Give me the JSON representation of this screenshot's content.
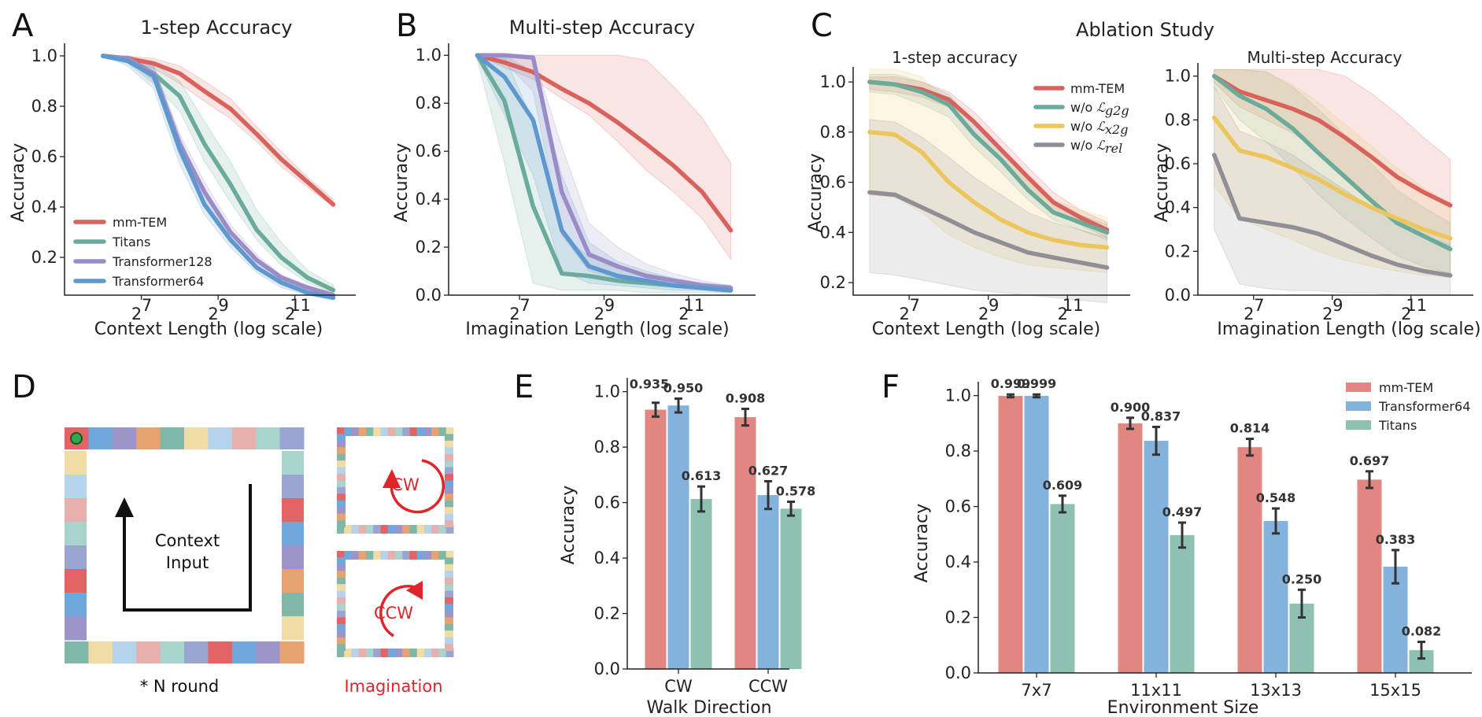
{
  "panels": {
    "A": {
      "letter": "A",
      "title": "1-step Accuracy",
      "xlabel": "Context Length (log scale)",
      "ylabel": "Accuracy"
    },
    "B": {
      "letter": "B",
      "title": "Multi-step Accuracy",
      "xlabel": "Imagination Length (log scale)",
      "ylabel": "Accuracy"
    },
    "C": {
      "letter": "C",
      "title": "Ablation Study",
      "left_title": "1-step accuracy",
      "right_title": "Multi-step Accuracy",
      "left_xlabel": "Context Length (log scale)",
      "right_xlabel": "Imagination Length (log scale)",
      "ylabel": "Accuracy"
    },
    "D": {
      "letter": "D",
      "context_line1": "Context",
      "context_line2": "Input",
      "rounds": "* N round",
      "imagination": "Imagination",
      "cw": "CW",
      "ccw": "CCW"
    },
    "E": {
      "letter": "E",
      "xlabel": "Walk Direction",
      "ylabel": "Accuracy"
    },
    "F": {
      "letter": "F",
      "xlabel": "Environment Size",
      "ylabel": "Accuracy"
    }
  },
  "colors": {
    "mm_tem": "#d9625d",
    "titans": "#6aab9c",
    "transformer128": "#9a8cc6",
    "transformer64": "#5e98cf",
    "wo_x2g": "#ecc65c",
    "wo_rel": "#8f8f95",
    "bar_red": "#e28682",
    "bar_blue": "#83b2dc",
    "bar_teal": "#8fc1b3",
    "diag_red": "#e0242b"
  },
  "chart_data": [
    {
      "id": "A",
      "type": "line",
      "title": "1-step Accuracy",
      "xlabel": "Context Length (log scale)",
      "ylabel": "Accuracy",
      "xscale": "log2",
      "xlim": [
        32,
        6144
      ],
      "ylim": [
        0.05,
        1.05
      ],
      "xticks": [
        {
          "v": 128,
          "base": "2",
          "exp": "7"
        },
        {
          "v": 512,
          "base": "2",
          "exp": "9"
        },
        {
          "v": 2048,
          "base": "2",
          "exp": "11"
        }
      ],
      "yticks": [
        0.2,
        0.4,
        0.6,
        0.8,
        1.0
      ],
      "legend": "lower-left",
      "x": [
        64,
        100,
        160,
        256,
        400,
        640,
        1024,
        1600,
        2560,
        4096
      ],
      "series": [
        {
          "name": "mm-TEM",
          "color": "#d9625d",
          "values": [
            1.0,
            0.99,
            0.97,
            0.93,
            0.86,
            0.79,
            0.69,
            0.59,
            0.5,
            0.41
          ],
          "lower": [
            1.0,
            0.98,
            0.95,
            0.89,
            0.82,
            0.75,
            0.66,
            0.56,
            0.48,
            0.4
          ],
          "upper": [
            1.0,
            1.0,
            0.99,
            0.96,
            0.9,
            0.83,
            0.72,
            0.62,
            0.52,
            0.43
          ]
        },
        {
          "name": "Titans",
          "color": "#6aab9c",
          "values": [
            1.0,
            0.99,
            0.93,
            0.84,
            0.65,
            0.49,
            0.31,
            0.2,
            0.12,
            0.07
          ],
          "lower": [
            1.0,
            0.97,
            0.89,
            0.78,
            0.58,
            0.42,
            0.27,
            0.17,
            0.1,
            0.06
          ],
          "upper": [
            1.0,
            1.0,
            0.97,
            0.9,
            0.74,
            0.58,
            0.39,
            0.26,
            0.15,
            0.09
          ]
        },
        {
          "name": "Transformer128",
          "color": "#9a8cc6",
          "values": [
            1.0,
            0.99,
            0.93,
            0.65,
            0.46,
            0.3,
            0.19,
            0.12,
            0.08,
            0.05
          ],
          "lower": [
            1.0,
            0.98,
            0.9,
            0.6,
            0.42,
            0.28,
            0.17,
            0.1,
            0.07,
            0.04
          ],
          "upper": [
            1.0,
            1.0,
            0.96,
            0.69,
            0.5,
            0.33,
            0.21,
            0.13,
            0.09,
            0.06
          ]
        },
        {
          "name": "Transformer64",
          "color": "#5e98cf",
          "values": [
            1.0,
            0.98,
            0.92,
            0.63,
            0.41,
            0.27,
            0.16,
            0.1,
            0.06,
            0.04
          ],
          "lower": [
            1.0,
            0.96,
            0.87,
            0.57,
            0.37,
            0.24,
            0.14,
            0.08,
            0.05,
            0.03
          ],
          "upper": [
            1.0,
            1.0,
            0.96,
            0.68,
            0.45,
            0.3,
            0.18,
            0.11,
            0.07,
            0.05
          ]
        }
      ]
    },
    {
      "id": "B",
      "type": "line",
      "title": "Multi-step Accuracy",
      "xlabel": "Imagination Length (log scale)",
      "ylabel": "Accuracy",
      "xscale": "log2",
      "xlim": [
        40,
        6144
      ],
      "ylim": [
        0.0,
        1.05
      ],
      "xticks": [
        {
          "v": 128,
          "base": "2",
          "exp": "7"
        },
        {
          "v": 512,
          "base": "2",
          "exp": "9"
        },
        {
          "v": 2048,
          "base": "2",
          "exp": "11"
        }
      ],
      "yticks": [
        0.0,
        0.2,
        0.4,
        0.6,
        0.8,
        1.0
      ],
      "x": [
        64,
        100,
        160,
        256,
        400,
        640,
        1024,
        1600,
        2560,
        4096
      ],
      "series": [
        {
          "name": "mm-TEM",
          "color": "#d9625d",
          "values": [
            1.0,
            0.97,
            0.93,
            0.86,
            0.8,
            0.72,
            0.63,
            0.54,
            0.43,
            0.27
          ],
          "lower": [
            1.0,
            0.95,
            0.9,
            0.82,
            0.75,
            0.64,
            0.52,
            0.43,
            0.32,
            0.15
          ],
          "upper": [
            1.0,
            1.0,
            1.0,
            1.0,
            1.0,
            1.0,
            0.98,
            0.87,
            0.74,
            0.55
          ]
        },
        {
          "name": "Titans",
          "color": "#6aab9c",
          "values": [
            1.0,
            0.81,
            0.37,
            0.09,
            0.08,
            0.06,
            0.05,
            0.04,
            0.03,
            0.02
          ],
          "lower": [
            0.98,
            0.55,
            0.05,
            0.02,
            0.02,
            0.02,
            0.01,
            0.01,
            0.01,
            0.01
          ],
          "upper": [
            1.0,
            1.0,
            0.72,
            0.25,
            0.16,
            0.11,
            0.09,
            0.07,
            0.05,
            0.04
          ]
        },
        {
          "name": "Transformer128",
          "color": "#9a8cc6",
          "values": [
            1.0,
            1.0,
            0.99,
            0.43,
            0.17,
            0.12,
            0.08,
            0.06,
            0.04,
            0.03
          ],
          "lower": [
            0.99,
            0.97,
            0.85,
            0.25,
            0.1,
            0.07,
            0.05,
            0.04,
            0.03,
            0.02
          ],
          "upper": [
            1.0,
            1.0,
            1.0,
            0.62,
            0.3,
            0.2,
            0.13,
            0.09,
            0.06,
            0.04
          ]
        },
        {
          "name": "Transformer64",
          "color": "#5e98cf",
          "values": [
            1.0,
            0.91,
            0.73,
            0.27,
            0.12,
            0.08,
            0.06,
            0.04,
            0.03,
            0.02
          ],
          "lower": [
            0.99,
            0.75,
            0.5,
            0.1,
            0.05,
            0.04,
            0.03,
            0.02,
            0.02,
            0.01
          ],
          "upper": [
            1.0,
            1.0,
            0.93,
            0.5,
            0.22,
            0.14,
            0.1,
            0.07,
            0.05,
            0.04
          ]
        }
      ]
    },
    {
      "id": "C1",
      "type": "line",
      "title": "1-step accuracy",
      "xlabel": "Context Length (log scale)",
      "ylabel": "Accuracy",
      "xscale": "log2",
      "xlim": [
        48,
        6144
      ],
      "ylim": [
        0.15,
        1.06
      ],
      "xticks": [
        {
          "v": 128,
          "base": "2",
          "exp": "7"
        },
        {
          "v": 512,
          "base": "2",
          "exp": "9"
        },
        {
          "v": 2048,
          "base": "2",
          "exp": "11"
        }
      ],
      "yticks": [
        0.2,
        0.4,
        0.6,
        0.8,
        1.0
      ],
      "legend": "top-right",
      "x": [
        64,
        100,
        160,
        256,
        400,
        640,
        1024,
        1600,
        2560,
        4096
      ],
      "series": [
        {
          "name": "mm-TEM",
          "tex": "",
          "color": "#d9625d",
          "values": [
            1.0,
            0.99,
            0.97,
            0.93,
            0.84,
            0.73,
            0.62,
            0.52,
            0.46,
            0.41
          ],
          "lower": [
            0.97,
            0.96,
            0.94,
            0.9,
            0.8,
            0.69,
            0.58,
            0.48,
            0.43,
            0.38
          ],
          "upper": [
            1.02,
            1.02,
            1.0,
            0.96,
            0.88,
            0.77,
            0.66,
            0.56,
            0.49,
            0.44
          ]
        },
        {
          "name": "w/o ",
          "tex": "g2g",
          "color": "#6aab9c",
          "values": [
            1.0,
            0.99,
            0.96,
            0.91,
            0.79,
            0.69,
            0.57,
            0.48,
            0.44,
            0.4
          ],
          "lower": [
            0.96,
            0.95,
            0.91,
            0.86,
            0.74,
            0.64,
            0.53,
            0.45,
            0.41,
            0.37
          ],
          "upper": [
            1.03,
            1.03,
            1.0,
            0.95,
            0.84,
            0.74,
            0.62,
            0.52,
            0.47,
            0.43
          ]
        },
        {
          "name": "w/o ",
          "tex": "x2g",
          "color": "#ecc65c",
          "values": [
            0.8,
            0.79,
            0.72,
            0.6,
            0.52,
            0.45,
            0.4,
            0.37,
            0.35,
            0.34
          ],
          "lower": [
            0.55,
            0.54,
            0.48,
            0.39,
            0.34,
            0.3,
            0.27,
            0.26,
            0.25,
            0.24
          ],
          "upper": [
            1.05,
            1.05,
            1.02,
            0.92,
            0.8,
            0.7,
            0.6,
            0.53,
            0.49,
            0.46
          ]
        },
        {
          "name": "w/o ",
          "tex": "rel",
          "color": "#8f8f95",
          "values": [
            0.56,
            0.55,
            0.5,
            0.45,
            0.4,
            0.36,
            0.32,
            0.3,
            0.28,
            0.26
          ],
          "lower": [
            0.24,
            0.23,
            0.21,
            0.19,
            0.17,
            0.16,
            0.15,
            0.14,
            0.13,
            0.12
          ],
          "upper": [
            0.85,
            0.84,
            0.78,
            0.7,
            0.62,
            0.55,
            0.48,
            0.44,
            0.41,
            0.38
          ]
        }
      ]
    },
    {
      "id": "C2",
      "type": "line",
      "title": "Multi-step Accuracy",
      "xlabel": "Imagination Length (log scale)",
      "ylabel": "Accuracy",
      "xscale": "log2",
      "xlim": [
        48,
        6144
      ],
      "ylim": [
        0.0,
        1.06
      ],
      "xticks": [
        {
          "v": 128,
          "base": "2",
          "exp": "7"
        },
        {
          "v": 512,
          "base": "2",
          "exp": "9"
        },
        {
          "v": 2048,
          "base": "2",
          "exp": "11"
        }
      ],
      "yticks": [
        0.0,
        0.2,
        0.4,
        0.6,
        0.8,
        1.0
      ],
      "x": [
        64,
        100,
        160,
        256,
        400,
        640,
        1024,
        1600,
        2560,
        4096
      ],
      "series": [
        {
          "name": "mm-TEM",
          "color": "#d9625d",
          "values": [
            1.0,
            0.93,
            0.89,
            0.85,
            0.8,
            0.72,
            0.63,
            0.54,
            0.47,
            0.41
          ],
          "lower": [
            0.97,
            0.86,
            0.8,
            0.74,
            0.66,
            0.55,
            0.44,
            0.34,
            0.27,
            0.22
          ],
          "upper": [
            1.03,
            1.03,
            1.03,
            1.03,
            1.03,
            1.0,
            0.92,
            0.83,
            0.72,
            0.62
          ]
        },
        {
          "name": "w/o g2g",
          "color": "#6aab9c",
          "values": [
            1.0,
            0.91,
            0.85,
            0.76,
            0.65,
            0.54,
            0.43,
            0.33,
            0.27,
            0.21
          ],
          "lower": [
            0.95,
            0.8,
            0.7,
            0.58,
            0.46,
            0.35,
            0.26,
            0.18,
            0.13,
            0.1
          ],
          "upper": [
            1.03,
            1.03,
            1.02,
            0.95,
            0.85,
            0.73,
            0.6,
            0.48,
            0.4,
            0.33
          ]
        },
        {
          "name": "w/o x2g",
          "color": "#ecc65c",
          "values": [
            0.81,
            0.66,
            0.63,
            0.58,
            0.53,
            0.46,
            0.4,
            0.35,
            0.3,
            0.26
          ],
          "lower": [
            0.5,
            0.35,
            0.3,
            0.25,
            0.2,
            0.16,
            0.13,
            0.11,
            0.09,
            0.08
          ],
          "upper": [
            1.03,
            1.03,
            1.02,
            0.96,
            0.88,
            0.78,
            0.68,
            0.58,
            0.49,
            0.42
          ]
        },
        {
          "name": "w/o rel",
          "color": "#8f8f95",
          "values": [
            0.64,
            0.35,
            0.33,
            0.31,
            0.28,
            0.23,
            0.18,
            0.14,
            0.11,
            0.09
          ],
          "lower": [
            0.3,
            0.05,
            0.03,
            0.02,
            0.02,
            0.01,
            0.01,
            0.0,
            0.0,
            0.0
          ],
          "upper": [
            0.95,
            0.75,
            0.7,
            0.64,
            0.56,
            0.48,
            0.4,
            0.33,
            0.27,
            0.23
          ]
        }
      ]
    },
    {
      "id": "E",
      "type": "bar",
      "xlabel": "Walk Direction",
      "ylabel": "Accuracy",
      "ylim": [
        0.0,
        1.05
      ],
      "yticks": [
        0.0,
        0.2,
        0.4,
        0.6,
        0.8,
        1.0
      ],
      "categories": [
        "CW",
        "CCW"
      ],
      "series": [
        {
          "name": "mm-TEM",
          "color": "#e28682",
          "values": [
            0.935,
            0.908
          ],
          "errors": [
            0.025,
            0.03
          ],
          "labels": [
            "0.935",
            "0.908"
          ]
        },
        {
          "name": "Transformer64",
          "color": "#83b2dc",
          "values": [
            0.95,
            0.627
          ],
          "errors": [
            0.025,
            0.05
          ],
          "labels": [
            "0.950",
            "0.627"
          ]
        },
        {
          "name": "Titans",
          "color": "#8fc1b3",
          "values": [
            0.613,
            0.578
          ],
          "errors": [
            0.045,
            0.025
          ],
          "labels": [
            "0.613",
            "0.578"
          ]
        }
      ]
    },
    {
      "id": "F",
      "type": "bar",
      "xlabel": "Environment Size",
      "ylabel": "Accuracy",
      "ylim": [
        0.0,
        1.05
      ],
      "yticks": [
        0.0,
        0.2,
        0.4,
        0.6,
        0.8,
        1.0
      ],
      "legend": "top-right",
      "categories": [
        "7x7",
        "11x11",
        "13x13",
        "15x15"
      ],
      "series": [
        {
          "name": "mm-TEM",
          "color": "#e28682",
          "values": [
            0.999,
            0.9,
            0.814,
            0.697
          ],
          "errors": [
            0.005,
            0.02,
            0.03,
            0.03
          ],
          "labels": [
            "0.999",
            "0.900",
            "0.814",
            "0.697"
          ]
        },
        {
          "name": "Transformer64",
          "color": "#83b2dc",
          "values": [
            0.999,
            0.837,
            0.548,
            0.383
          ],
          "errors": [
            0.005,
            0.05,
            0.045,
            0.06
          ],
          "labels": [
            "0.999",
            "0.837",
            "0.548",
            "0.383"
          ]
        },
        {
          "name": "Titans",
          "color": "#8fc1b3",
          "values": [
            0.609,
            0.497,
            0.25,
            0.082
          ],
          "errors": [
            0.03,
            0.045,
            0.05,
            0.03
          ],
          "labels": [
            "0.609",
            "0.497",
            "0.250",
            "0.082"
          ]
        }
      ]
    }
  ]
}
